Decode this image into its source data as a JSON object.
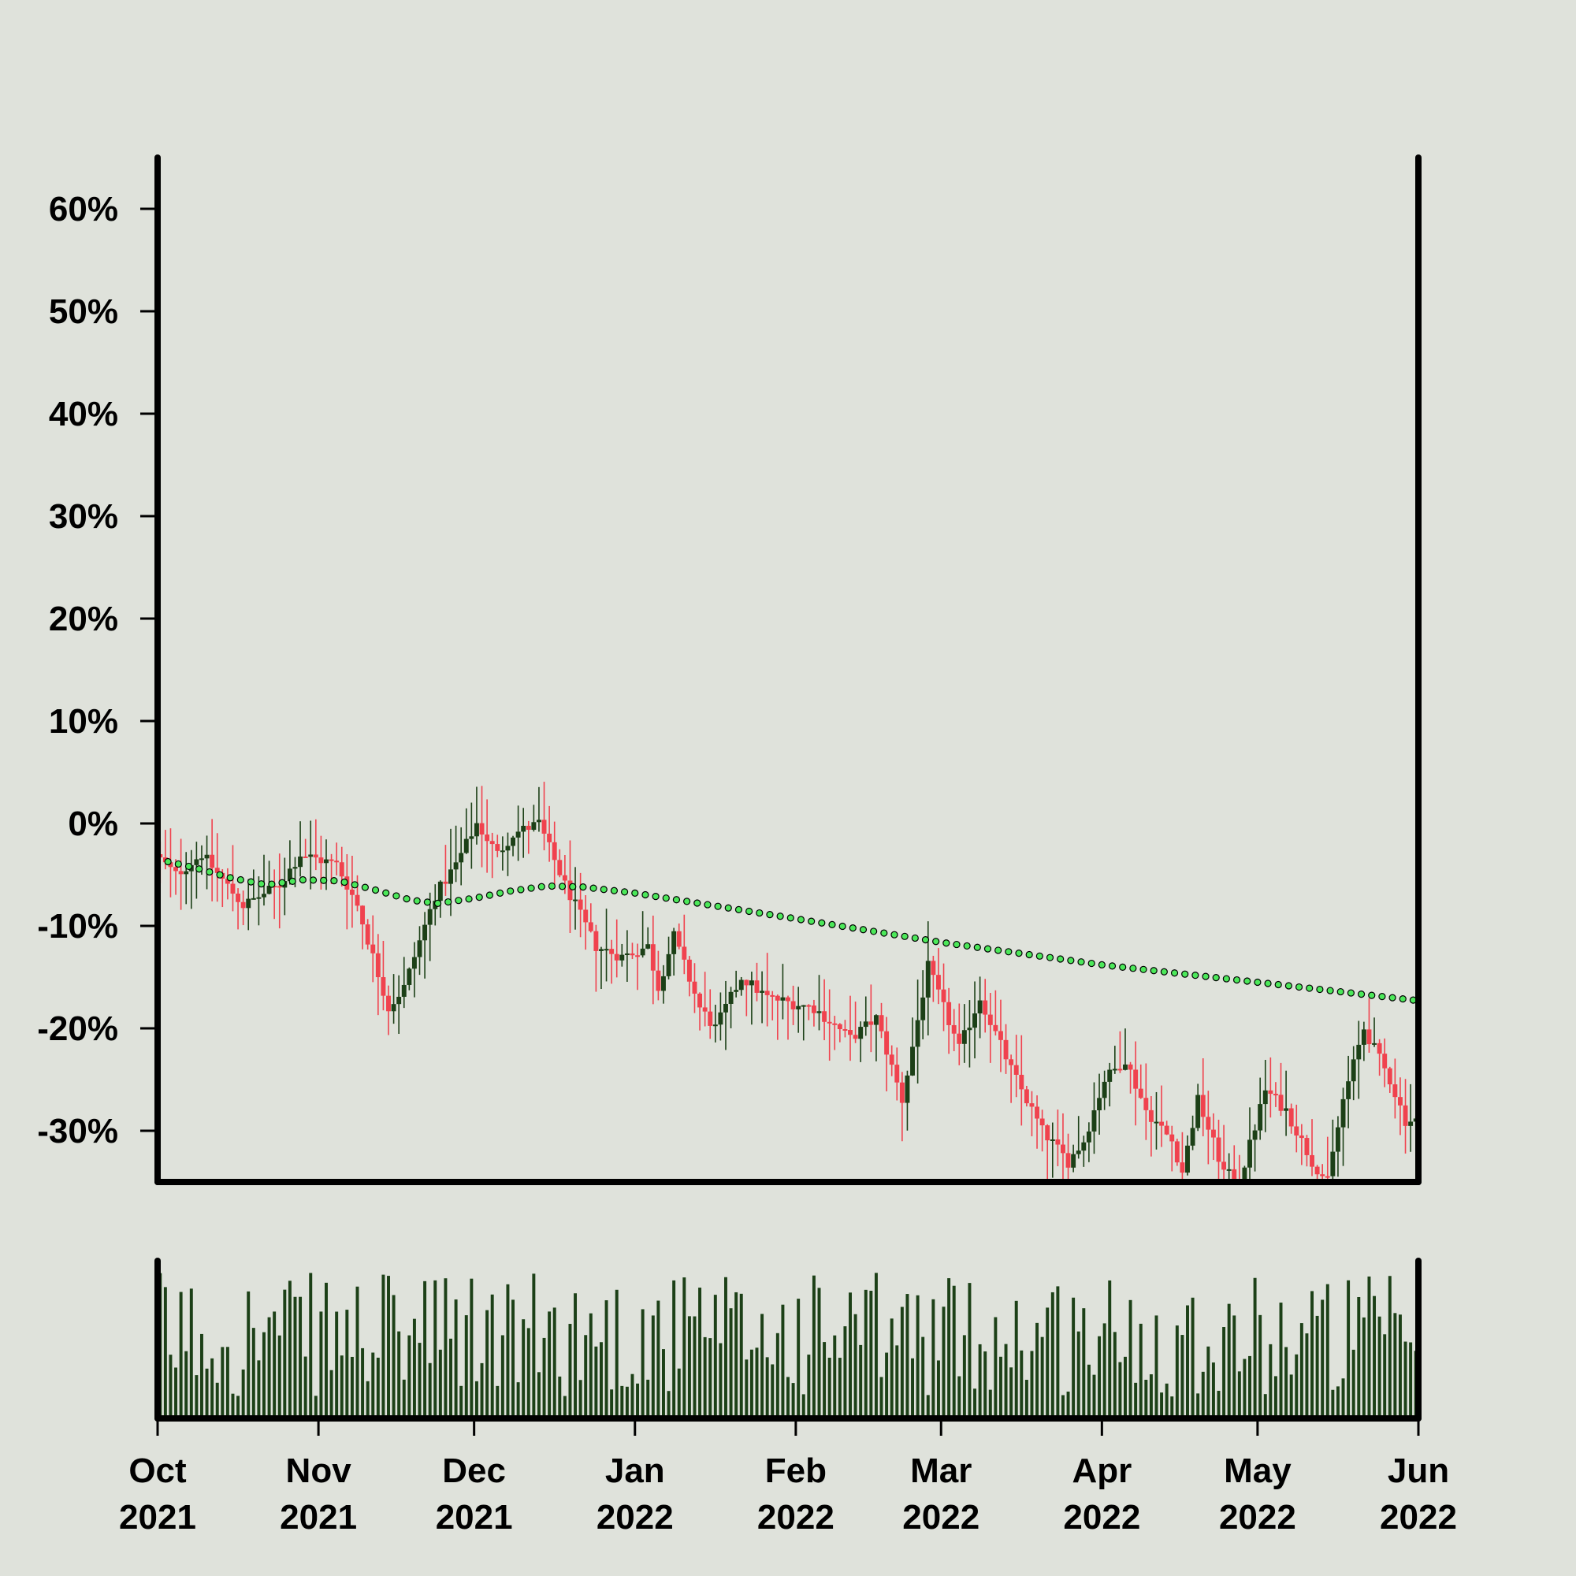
{
  "chart_data": {
    "type": "candlestick",
    "title": "",
    "ylabel": "",
    "xlabel": "",
    "y_axis": {
      "format": "percent",
      "ticks": [
        60,
        50,
        40,
        30,
        20,
        10,
        0,
        -10,
        -20,
        -30
      ],
      "tick_labels": [
        "60%",
        "50%",
        "40%",
        "30%",
        "20%",
        "10%",
        "0%",
        "-10%",
        "-20%",
        "-30%"
      ],
      "range": [
        -35,
        65
      ]
    },
    "x_axis": {
      "range": [
        "2021-10-01",
        "2022-06-01"
      ],
      "ticks": [
        {
          "date": "2021-10-01",
          "month": "Oct",
          "year": "2021"
        },
        {
          "date": "2021-11-01",
          "month": "Nov",
          "year": "2021"
        },
        {
          "date": "2021-12-01",
          "month": "Dec",
          "year": "2021"
        },
        {
          "date": "2022-01-01",
          "month": "Jan",
          "year": "2022"
        },
        {
          "date": "2022-02-01",
          "month": "Feb",
          "year": "2022"
        },
        {
          "date": "2022-03-01",
          "month": "Mar",
          "year": "2022"
        },
        {
          "date": "2022-04-01",
          "month": "Apr",
          "year": "2022"
        },
        {
          "date": "2022-05-01",
          "month": "May",
          "year": "2022"
        },
        {
          "date": "2022-06-01",
          "month": "Jun",
          "year": "2022"
        }
      ]
    },
    "price_path": {
      "note_units": "percent change vs start",
      "anchors": [
        [
          "2021-10-01",
          -3
        ],
        [
          "2021-10-05",
          -5
        ],
        [
          "2021-10-10",
          -3
        ],
        [
          "2021-10-18",
          -8
        ],
        [
          "2021-10-25",
          -6
        ],
        [
          "2021-10-29",
          -3
        ],
        [
          "2021-11-05",
          -4
        ],
        [
          "2021-11-09",
          -8
        ],
        [
          "2021-11-15",
          -18
        ],
        [
          "2021-11-18",
          -16
        ],
        [
          "2021-11-24",
          -7
        ],
        [
          "2021-11-28",
          -4
        ],
        [
          "2021-12-02",
          0
        ],
        [
          "2021-12-06",
          -3
        ],
        [
          "2021-12-09",
          -1
        ],
        [
          "2021-12-14",
          0
        ],
        [
          "2021-12-19",
          -6
        ],
        [
          "2021-12-25",
          -12
        ],
        [
          "2021-12-30",
          -13
        ],
        [
          "2022-01-04",
          -12
        ],
        [
          "2022-01-06",
          -16
        ],
        [
          "2022-01-09",
          -11
        ],
        [
          "2022-01-14",
          -18
        ],
        [
          "2022-01-17",
          -20
        ],
        [
          "2022-01-22",
          -15
        ],
        [
          "2022-01-27",
          -17
        ],
        [
          "2022-02-05",
          -18
        ],
        [
          "2022-02-12",
          -21
        ],
        [
          "2022-02-17",
          -19
        ],
        [
          "2022-02-22",
          -27
        ],
        [
          "2022-02-27",
          -14
        ],
        [
          "2022-03-05",
          -22
        ],
        [
          "2022-03-09",
          -17
        ],
        [
          "2022-03-15",
          -24
        ],
        [
          "2022-03-21",
          -30
        ],
        [
          "2022-03-26",
          -33
        ],
        [
          "2022-03-29",
          -31
        ],
        [
          "2022-04-02",
          -25
        ],
        [
          "2022-04-06",
          -23
        ],
        [
          "2022-04-10",
          -28
        ],
        [
          "2022-04-15",
          -31
        ],
        [
          "2022-04-17",
          -34
        ],
        [
          "2022-04-20",
          -27
        ],
        [
          "2022-04-25",
          -34
        ],
        [
          "2022-04-28",
          -35
        ],
        [
          "2022-05-03",
          -26
        ],
        [
          "2022-05-07",
          -28
        ],
        [
          "2022-05-12",
          -33
        ],
        [
          "2022-05-15",
          -35
        ],
        [
          "2022-05-18",
          -27
        ],
        [
          "2022-05-22",
          -20
        ],
        [
          "2022-05-27",
          -25
        ],
        [
          "2022-05-30",
          -29
        ],
        [
          "2022-06-01",
          -29
        ]
      ]
    },
    "moving_average": {
      "points": [
        [
          "2021-10-01",
          -3.5
        ],
        [
          "2021-10-08",
          -4.3
        ],
        [
          "2021-10-15",
          -5.3
        ],
        [
          "2021-10-22",
          -6.0
        ],
        [
          "2021-10-29",
          -5.5
        ],
        [
          "2021-11-05",
          -5.6
        ],
        [
          "2021-11-12",
          -6.5
        ],
        [
          "2021-11-19",
          -7.5
        ],
        [
          "2021-11-24",
          -7.8
        ],
        [
          "2021-12-01",
          -7.3
        ],
        [
          "2021-12-08",
          -6.6
        ],
        [
          "2021-12-15",
          -6.1
        ],
        [
          "2021-12-22",
          -6.2
        ],
        [
          "2022-01-01",
          -6.8
        ],
        [
          "2022-02-01",
          -9.3
        ],
        [
          "2022-03-01",
          -11.6
        ],
        [
          "2022-04-01",
          -13.8
        ],
        [
          "2022-05-01",
          -15.5
        ],
        [
          "2022-06-01",
          -17.3
        ]
      ]
    },
    "volume": {
      "note": "relative volume bars, scaled 0 to 1"
    },
    "colors": {
      "background": "#dfe2db",
      "up_candle": "#1c4017",
      "down_candle": "#f0424e",
      "moving_average_fill": "#4ce85a",
      "moving_average_stroke": "#000000",
      "volume_bar": "#1c4017",
      "axis": "#000000"
    }
  }
}
